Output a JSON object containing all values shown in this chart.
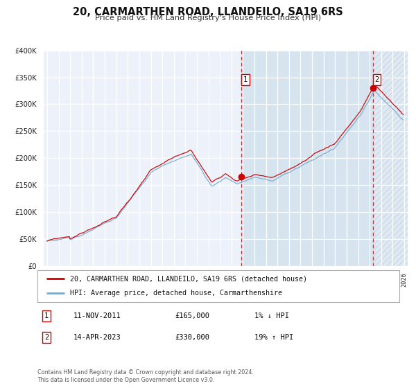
{
  "title": "20, CARMARTHEN ROAD, LLANDEILO, SA19 6RS",
  "subtitle": "Price paid vs. HM Land Registry's House Price Index (HPI)",
  "hpi_label": "HPI: Average price, detached house, Carmarthenshire",
  "property_label": "20, CARMARTHEN ROAD, LLANDEILO, SA19 6RS (detached house)",
  "annotation1": {
    "label": "1",
    "date_str": "11-NOV-2011",
    "price": 165000,
    "hpi_change": "1% ↓ HPI",
    "x_year": 2011.87
  },
  "annotation2": {
    "label": "2",
    "date_str": "14-APR-2023",
    "price": 330000,
    "hpi_change": "19% ↑ HPI",
    "x_year": 2023.29
  },
  "ylim": [
    0,
    400000
  ],
  "xlim_start": 1994.7,
  "xlim_end": 2026.3,
  "property_line_color": "#cc0000",
  "hpi_line_color": "#7aabcf",
  "background_color": "#ffffff",
  "plot_bg_color": "#edf2fa",
  "shade_color": "#d6e4f0",
  "grid_color": "#ffffff",
  "footnote": "Contains HM Land Registry data © Crown copyright and database right 2024.\nThis data is licensed under the Open Government Licence v3.0."
}
